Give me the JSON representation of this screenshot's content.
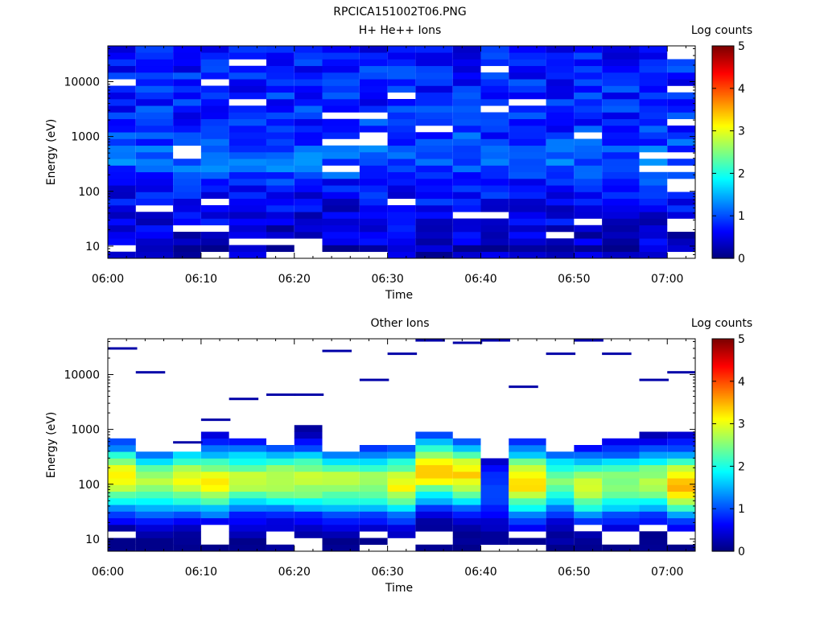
{
  "page_title": "RPCICA151002T06.PNG",
  "chart_data": [
    {
      "type": "heatmap",
      "title": "H+ He++ Ions",
      "xlabel": "Time",
      "ylabel": "Energy (eV)",
      "y_scale": "log",
      "xlim": [
        "06:00",
        "07:03"
      ],
      "ylim": [
        6,
        45000
      ],
      "x_ticks": [
        "06:00",
        "06:10",
        "06:20",
        "06:30",
        "06:40",
        "06:50",
        "07:00"
      ],
      "y_ticks": [
        "10",
        "100",
        "1000",
        "10000"
      ],
      "colorbar": {
        "label": "Log counts",
        "range": [
          0,
          5
        ],
        "ticks": [
          "0",
          "1",
          "2",
          "3",
          "4",
          "5"
        ]
      },
      "time_bins": [
        "06:00",
        "06:03",
        "06:07",
        "06:10",
        "06:13",
        "06:17",
        "06:20",
        "06:23",
        "06:27",
        "06:30",
        "06:33",
        "06:37",
        "06:40",
        "06:43",
        "06:47",
        "06:50",
        "06:53",
        "06:57",
        "07:00"
      ],
      "energy_range_ev": [
        6,
        45000
      ],
      "energy_bins": 32,
      "profile": {
        "base_log_counts": [
          0.4,
          0.35,
          0.4,
          0.42,
          0.45,
          0.48,
          0.5,
          0.55,
          0.6,
          0.65,
          0.7,
          0.8,
          0.9,
          1.0,
          1.05,
          1.05,
          1.0,
          0.95,
          0.9,
          0.85,
          0.82,
          0.8,
          0.8,
          0.8,
          0.8,
          0.78,
          0.78,
          0.75,
          0.75,
          0.72,
          0.7,
          0.7
        ],
        "note": "upper ion species: broad low-level counts across all energies"
      },
      "blank_cells": [
        [
          6,
          0
        ],
        [
          6,
          1
        ],
        [
          6,
          2
        ],
        [
          7,
          0
        ],
        [
          8,
          0
        ],
        [
          3,
          4
        ],
        [
          14,
          3
        ],
        [
          15,
          5
        ],
        [
          11,
          6
        ],
        [
          18,
          0
        ],
        [
          18,
          5
        ],
        [
          18,
          10
        ],
        [
          18,
          15
        ],
        [
          18,
          20
        ],
        [
          18,
          25
        ],
        [
          18,
          30
        ],
        [
          18,
          31
        ]
      ]
    },
    {
      "type": "heatmap",
      "title": "Other Ions",
      "xlabel": "Time",
      "ylabel": "Energy (eV)",
      "y_scale": "log",
      "xlim": [
        "06:00",
        "07:03"
      ],
      "ylim": [
        6,
        45000
      ],
      "x_ticks": [
        "06:00",
        "06:10",
        "06:20",
        "06:30",
        "06:40",
        "06:50",
        "07:00"
      ],
      "y_ticks": [
        "10",
        "100",
        "1000",
        "10000"
      ],
      "colorbar": {
        "label": "Log counts",
        "range": [
          0,
          5
        ],
        "ticks": [
          "0",
          "1",
          "2",
          "3",
          "4",
          "5"
        ]
      },
      "time_bins": [
        "06:00",
        "06:03",
        "06:07",
        "06:10",
        "06:13",
        "06:17",
        "06:20",
        "06:23",
        "06:27",
        "06:30",
        "06:33",
        "06:37",
        "06:40",
        "06:43",
        "06:47",
        "06:50",
        "06:53",
        "06:57",
        "07:00"
      ],
      "energy_range_ev": [
        6,
        45000
      ],
      "energy_bins": 32,
      "peak_energy_ev": [
        130,
        110,
        120,
        110,
        120,
        120,
        120,
        110,
        110,
        100,
        180,
        150,
        80,
        110,
        110,
        90,
        100,
        110,
        100
      ],
      "peak_log_counts": [
        3.2,
        2.7,
        3.0,
        3.1,
        2.8,
        2.9,
        2.9,
        2.8,
        2.7,
        3.1,
        3.4,
        3.3,
        1.0,
        3.4,
        2.5,
        3.0,
        2.6,
        2.8,
        3.5
      ],
      "max_energy_ev": [
        750,
        450,
        420,
        900,
        700,
        520,
        1200,
        450,
        500,
        500,
        800,
        700,
        260,
        700,
        400,
        500,
        650,
        800,
        850
      ],
      "sparse_counts": [
        {
          "time": "06:00",
          "energy": 30000,
          "log_counts": 0.2
        },
        {
          "time": "06:03",
          "energy": 11000,
          "log_counts": 0.2
        },
        {
          "time": "06:07",
          "energy": 580,
          "log_counts": 0.2
        },
        {
          "time": "06:10",
          "energy": 1500,
          "log_counts": 0.2
        },
        {
          "time": "06:13",
          "energy": 3600,
          "log_counts": 0.2
        },
        {
          "time": "06:17",
          "energy": 4300,
          "log_counts": 0.2
        },
        {
          "time": "06:20",
          "energy": 4300,
          "log_counts": 0.2
        },
        {
          "time": "06:23",
          "energy": 27000,
          "log_counts": 0.2
        },
        {
          "time": "06:27",
          "energy": 8000,
          "log_counts": 0.2
        },
        {
          "time": "06:30",
          "energy": 24000,
          "log_counts": 0.2
        },
        {
          "time": "06:33",
          "energy": 42000,
          "log_counts": 0.2
        },
        {
          "time": "06:37",
          "energy": 38000,
          "log_counts": 0.2
        },
        {
          "time": "06:40",
          "energy": 42000,
          "log_counts": 0.2
        },
        {
          "time": "06:43",
          "energy": 6000,
          "log_counts": 0.2
        },
        {
          "time": "06:47",
          "energy": 24000,
          "log_counts": 0.2
        },
        {
          "time": "06:50",
          "energy": 42000,
          "log_counts": 0.2
        },
        {
          "time": "06:53",
          "energy": 24000,
          "log_counts": 0.2
        },
        {
          "time": "06:57",
          "energy": 8000,
          "log_counts": 0.2
        },
        {
          "time": "07:00",
          "energy": 11000,
          "log_counts": 0.2
        }
      ]
    }
  ]
}
